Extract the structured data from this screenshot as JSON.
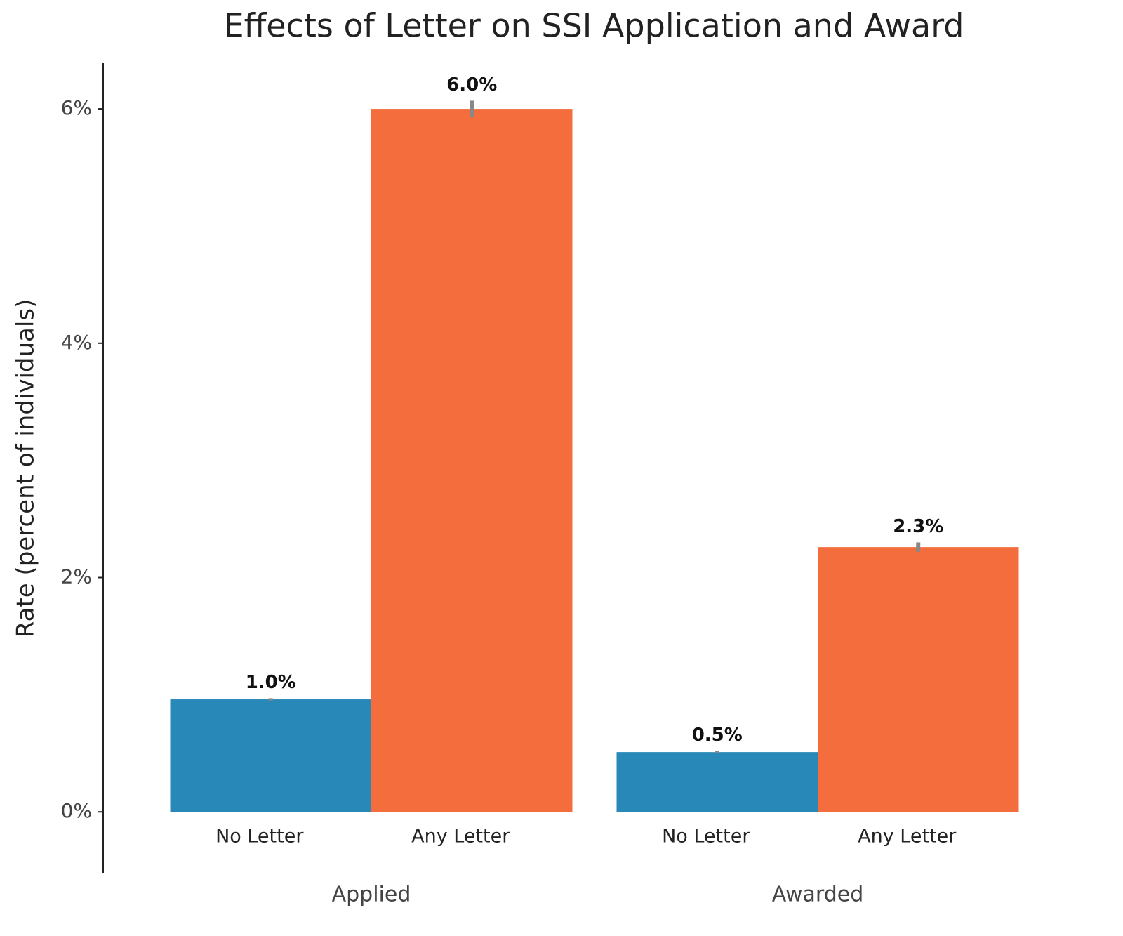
{
  "chart_data": {
    "type": "bar",
    "title": "Effects of Letter on SSI Application and Award",
    "y_label": "Rate (percent of individuals)",
    "categories": [
      "Applied",
      "Awarded"
    ],
    "series": [
      {
        "name": "No Letter",
        "color": "#2888b8",
        "values": [
          0.96,
          0.51
        ],
        "value_labels": [
          "1.0%",
          "0.5%"
        ],
        "errors": [
          0.01,
          0.01
        ]
      },
      {
        "name": "Any Letter",
        "color": "#f46d3d",
        "values": [
          6.0,
          2.26
        ],
        "value_labels": [
          "6.0%",
          "2.3%"
        ],
        "errors": [
          0.07,
          0.04
        ]
      }
    ],
    "ylim": [
      -0.52,
      6.39
    ],
    "yticks": [
      {
        "value": 0,
        "label": "0%"
      },
      {
        "value": 2,
        "label": "2%"
      },
      {
        "value": 4,
        "label": "4%"
      },
      {
        "value": 6,
        "label": "6%"
      }
    ],
    "error_color": "#888888",
    "grid": false
  }
}
